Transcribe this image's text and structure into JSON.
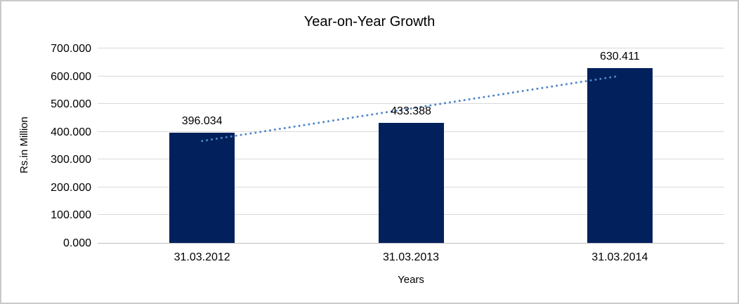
{
  "colors": {
    "bar": "#02215C",
    "trendline": "#4E86C7",
    "gridline": "#D9D9D9",
    "axis_line": "#BFBFBF",
    "text": "#000000",
    "border": "#C9C9C9"
  },
  "chart_data": {
    "type": "bar",
    "title": "Year-on-Year Growth",
    "xlabel": "Years",
    "ylabel": "Rs.in Million",
    "categories": [
      "31.03.2012",
      "31.03.2013",
      "31.03.2014"
    ],
    "values": [
      396.034,
      433.388,
      630.411
    ],
    "data_labels": [
      "396.034",
      "433.388",
      "630.411"
    ],
    "y_ticks": [
      "0.000",
      "100.000",
      "200.000",
      "300.000",
      "400.000",
      "500.000",
      "600.000",
      "700.000"
    ],
    "ylim": [
      0,
      700
    ],
    "grid": true,
    "legend": "none",
    "trendline": {
      "style": "dotted",
      "span": "first-to-last-category-center",
      "start_value": 369.42,
      "end_value": 603.8
    }
  }
}
